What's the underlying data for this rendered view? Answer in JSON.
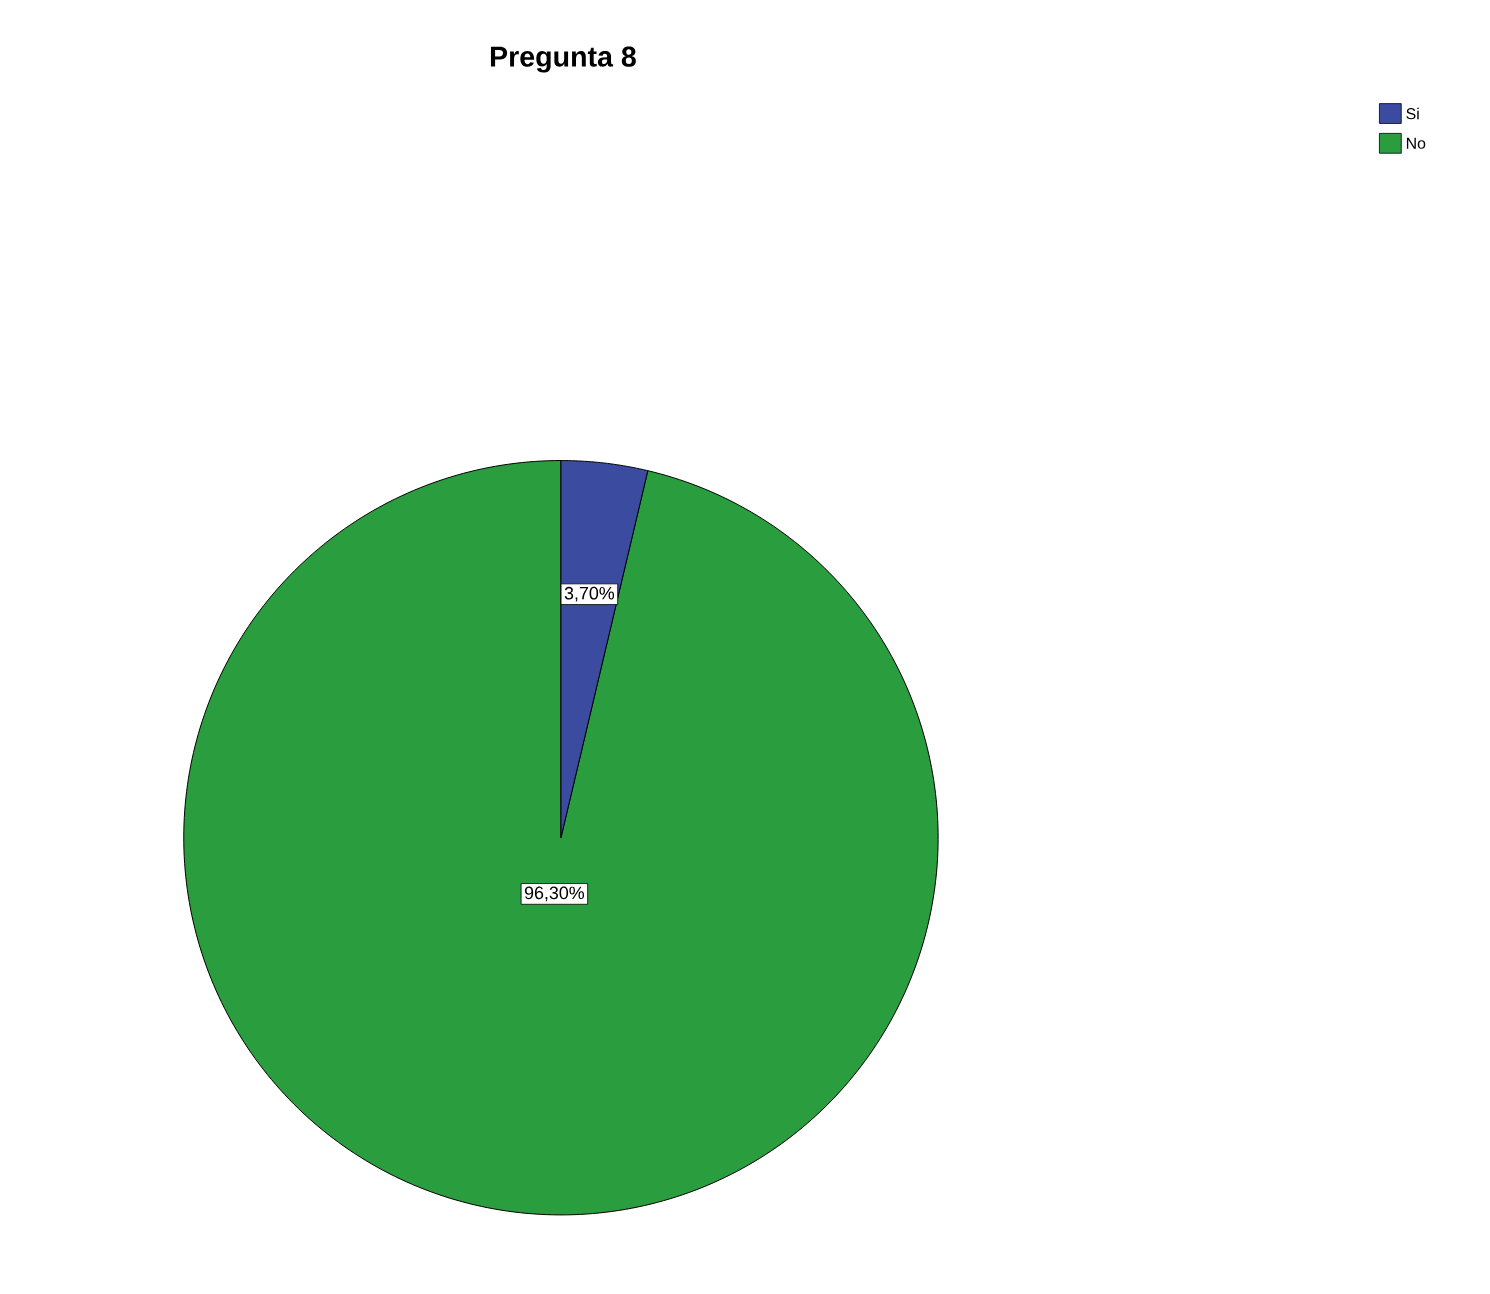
{
  "chart_data": {
    "type": "pie",
    "title": "Pregunta 8",
    "categories": [
      "Si",
      "No"
    ],
    "values": [
      3.7,
      96.3
    ],
    "value_labels": [
      "3,70%",
      "96,30%"
    ],
    "colors": [
      "#3b4ba0",
      "#2a9e3e"
    ],
    "legend": "top right"
  }
}
